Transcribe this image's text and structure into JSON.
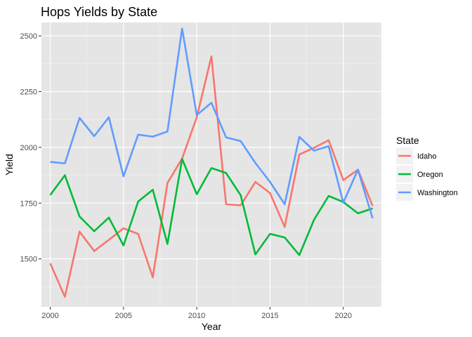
{
  "chart_data": {
    "type": "line",
    "title": "Hops Yields by State",
    "xlabel": "Year",
    "ylabel": "Yield",
    "x": [
      2000,
      2001,
      2002,
      2003,
      2004,
      2005,
      2006,
      2007,
      2008,
      2009,
      2010,
      2011,
      2012,
      2013,
      2014,
      2015,
      2016,
      2017,
      2018,
      2019,
      2020,
      2021,
      2022
    ],
    "xlim": [
      1999.4,
      2022.6
    ],
    "ylim": [
      1285,
      2560
    ],
    "xticks": [
      2000,
      2005,
      2010,
      2015,
      2020
    ],
    "yticks": [
      1500,
      1750,
      2000,
      2250,
      2500
    ],
    "xtick_labels": [
      "2000",
      "2005",
      "2010",
      "2015",
      "2020"
    ],
    "ytick_labels": [
      "1500",
      "1750",
      "2000",
      "2250",
      "2500"
    ],
    "grid": true,
    "background": "#e5e5e5",
    "legend": {
      "title": "State",
      "position": "right"
    },
    "series": [
      {
        "name": "Idaho",
        "color": "#f8766d",
        "values": [
          1480,
          1330,
          1622,
          1535,
          1585,
          1637,
          1612,
          1417,
          1840,
          1950,
          2135,
          2408,
          1745,
          1740,
          1845,
          1795,
          1643,
          1968,
          1998,
          2032,
          1853,
          1900,
          1737
        ]
      },
      {
        "name": "Oregon",
        "color": "#00ba38",
        "values": [
          1786,
          1875,
          1690,
          1624,
          1685,
          1560,
          1757,
          1810,
          1567,
          1948,
          1790,
          1907,
          1885,
          1785,
          1520,
          1612,
          1596,
          1517,
          1675,
          1782,
          1755,
          1704,
          1726
        ]
      },
      {
        "name": "Washington",
        "color": "#619cff",
        "values": [
          1935,
          1928,
          2132,
          2050,
          2135,
          1870,
          2057,
          2048,
          2071,
          2533,
          2145,
          2200,
          2045,
          2028,
          1930,
          1845,
          1745,
          2047,
          1985,
          2005,
          1752,
          1900,
          1682
        ]
      }
    ]
  }
}
